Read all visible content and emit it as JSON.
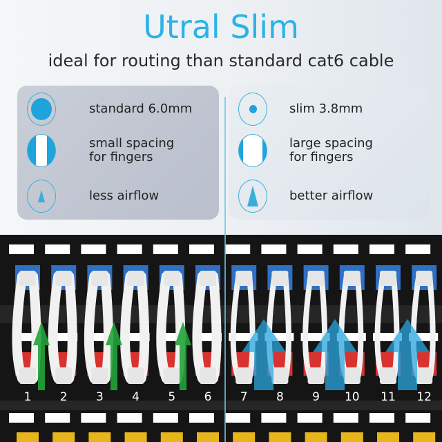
{
  "title": "Utral Slim",
  "subtitle": "ideal for routing than standard cat6 cable",
  "left_panel": {
    "items": [
      {
        "icon": "large-dot-icon",
        "lines": [
          "standard 6.0mm"
        ]
      },
      {
        "icon": "narrow-spacing-icon",
        "lines": [
          "small spacing",
          "for fingers"
        ]
      },
      {
        "icon": "small-arrow-icon",
        "lines": [
          "less airflow"
        ]
      }
    ]
  },
  "right_panel": {
    "items": [
      {
        "icon": "small-dot-icon",
        "lines": [
          "slim 3.8mm"
        ]
      },
      {
        "icon": "wide-spacing-icon",
        "lines": [
          "large spacing",
          "for fingers"
        ]
      },
      {
        "icon": "large-arrow-icon",
        "lines": [
          "better airflow"
        ]
      }
    ]
  },
  "port_numbers": [
    "1",
    "2",
    "3",
    "4",
    "5",
    "6",
    "7",
    "8",
    "9",
    "10",
    "11",
    "12"
  ],
  "colors": {
    "accent": "#2bb3e6",
    "top_jacks": "#2f6fc4",
    "bottom_jacks": "#d9332f",
    "third_row_jacks": "#e8b51c",
    "green_arrow": "#22a33a",
    "blue_arrow": "#2aa7e0"
  }
}
